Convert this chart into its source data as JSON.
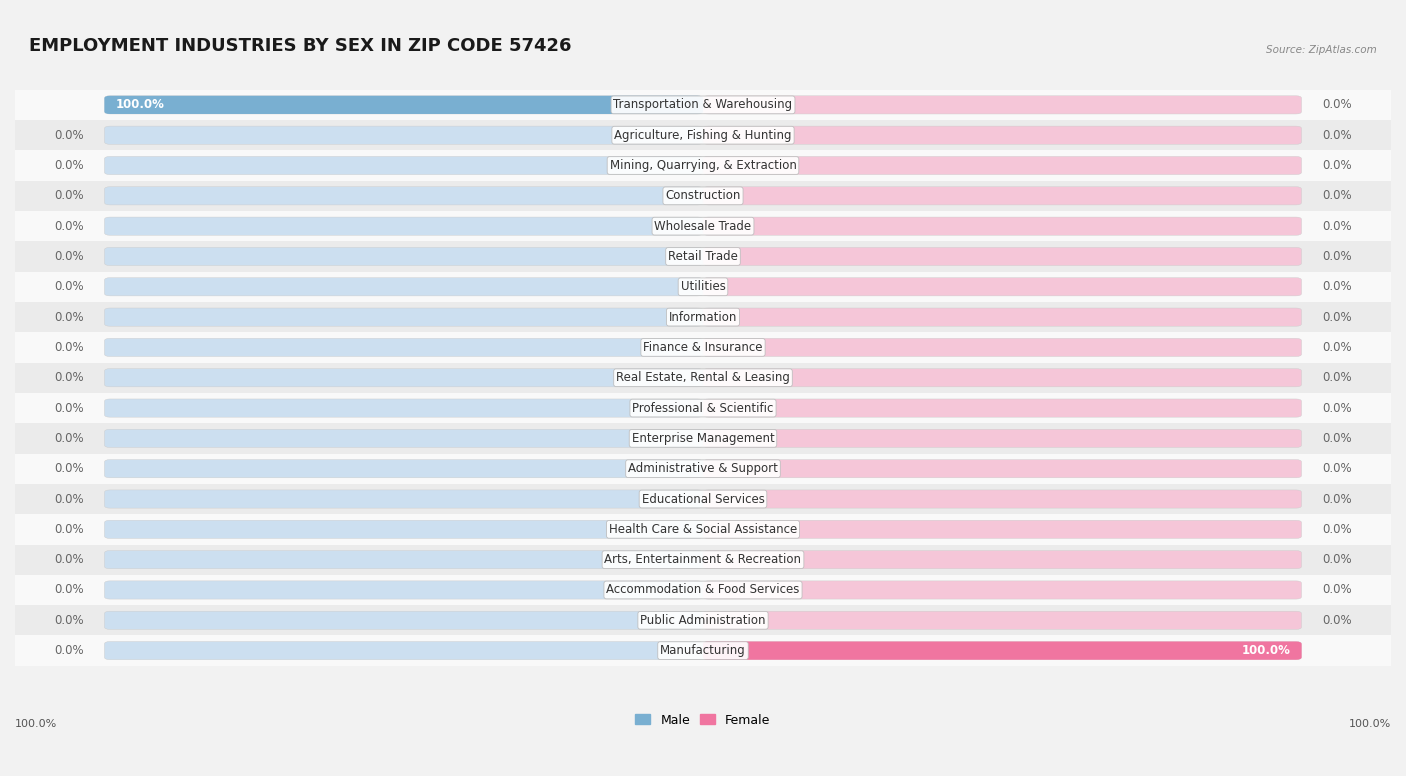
{
  "title": "EMPLOYMENT INDUSTRIES BY SEX IN ZIP CODE 57426",
  "source": "Source: ZipAtlas.com",
  "categories": [
    "Transportation & Warehousing",
    "Agriculture, Fishing & Hunting",
    "Mining, Quarrying, & Extraction",
    "Construction",
    "Wholesale Trade",
    "Retail Trade",
    "Utilities",
    "Information",
    "Finance & Insurance",
    "Real Estate, Rental & Leasing",
    "Professional & Scientific",
    "Enterprise Management",
    "Administrative & Support",
    "Educational Services",
    "Health Care & Social Assistance",
    "Arts, Entertainment & Recreation",
    "Accommodation & Food Services",
    "Public Administration",
    "Manufacturing"
  ],
  "male_values": [
    100.0,
    0.0,
    0.0,
    0.0,
    0.0,
    0.0,
    0.0,
    0.0,
    0.0,
    0.0,
    0.0,
    0.0,
    0.0,
    0.0,
    0.0,
    0.0,
    0.0,
    0.0,
    0.0
  ],
  "female_values": [
    0.0,
    0.0,
    0.0,
    0.0,
    0.0,
    0.0,
    0.0,
    0.0,
    0.0,
    0.0,
    0.0,
    0.0,
    0.0,
    0.0,
    0.0,
    0.0,
    0.0,
    0.0,
    100.0
  ],
  "male_color": "#79afd1",
  "female_color": "#f075a0",
  "bar_bg_male": "#ccdff0",
  "bar_bg_female": "#f5c6d8",
  "bg_color": "#f2f2f2",
  "row_bg_light": "#f9f9f9",
  "row_bg_dark": "#ebebeb",
  "bar_outline_color": "#cccccc",
  "title_fontsize": 13,
  "label_fontsize": 8.5,
  "value_fontsize": 8.5,
  "legend_fontsize": 9
}
